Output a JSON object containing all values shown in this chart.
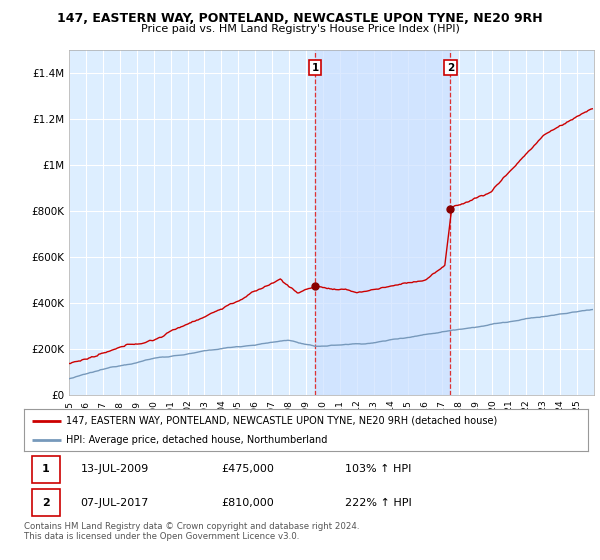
{
  "title_line1": "147, EASTERN WAY, PONTELAND, NEWCASTLE UPON TYNE, NE20 9RH",
  "title_line2": "Price paid vs. HM Land Registry's House Price Index (HPI)",
  "ylim": [
    0,
    1500000
  ],
  "yticks": [
    0,
    200000,
    400000,
    600000,
    800000,
    1000000,
    1200000,
    1400000
  ],
  "ytick_labels": [
    "£0",
    "£200K",
    "£400K",
    "£600K",
    "£800K",
    "£1M",
    "£1.2M",
    "£1.4M"
  ],
  "background_color": "#ffffff",
  "plot_bg_color": "#ddeeff",
  "grid_color": "#ffffff",
  "red_line_color": "#cc0000",
  "blue_line_color": "#7799bb",
  "shade_color": "#cce0ff",
  "marker1_x": 2009.53,
  "marker1_y": 475000,
  "marker2_x": 2017.52,
  "marker2_y": 810000,
  "vline1_x": 2009.53,
  "vline2_x": 2017.52,
  "legend_red_label": "147, EASTERN WAY, PONTELAND, NEWCASTLE UPON TYNE, NE20 9RH (detached house)",
  "legend_blue_label": "HPI: Average price, detached house, Northumberland",
  "table_row1": [
    "1",
    "13-JUL-2009",
    "£475,000",
    "103% ↑ HPI"
  ],
  "table_row2": [
    "2",
    "07-JUL-2017",
    "£810,000",
    "222% ↑ HPI"
  ],
  "footnote": "Contains HM Land Registry data © Crown copyright and database right 2024.\nThis data is licensed under the Open Government Licence v3.0.",
  "xmin": 1995,
  "xmax": 2026
}
